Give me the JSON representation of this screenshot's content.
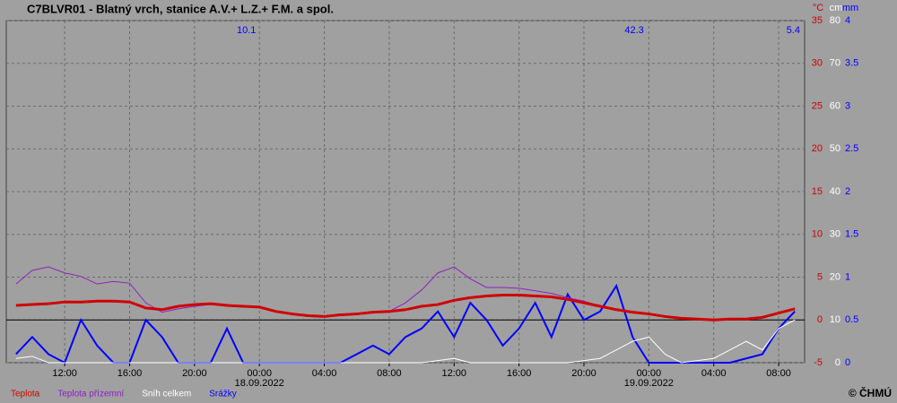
{
  "chart_data": {
    "type": "line",
    "title": "C7BLVR01 - Blatný vrch, stanice A.V.+ L.Z.+ F.M. a spol.",
    "y_unit": "°C",
    "y2_unit": "cm",
    "y3_unit": "mm",
    "copyright": "© ČHMÚ",
    "x": [
      9,
      10,
      11,
      12,
      13,
      14,
      15,
      16,
      17,
      18,
      19,
      20,
      21,
      22,
      23,
      24,
      25,
      26,
      27,
      28,
      29,
      30,
      31,
      32,
      33,
      34,
      35,
      36,
      37,
      38,
      39,
      40,
      41,
      42,
      43,
      44,
      45,
      46,
      47,
      48,
      49,
      50,
      51,
      52,
      53,
      54,
      55,
      56,
      57
    ],
    "xlim": [
      8.4,
      57.6
    ],
    "xticks": [
      {
        "value": 12,
        "label": "12:00"
      },
      {
        "value": 16,
        "label": "16:00"
      },
      {
        "value": 20,
        "label": "20:00"
      },
      {
        "value": 24,
        "label": "00:00"
      },
      {
        "value": 28,
        "label": "04:00"
      },
      {
        "value": 32,
        "label": "08:00"
      },
      {
        "value": 36,
        "label": "12:00"
      },
      {
        "value": 40,
        "label": "16:00"
      },
      {
        "value": 44,
        "label": "20:00"
      },
      {
        "value": 48,
        "label": "00:00"
      },
      {
        "value": 52,
        "label": "04:00"
      },
      {
        "value": 56,
        "label": "08:00"
      }
    ],
    "date_labels": [
      {
        "value": 24,
        "label": "18.09.2022"
      },
      {
        "value": 48,
        "label": "19.09.2022"
      }
    ],
    "top_labels": [
      {
        "x": 23.2,
        "label": "10.1"
      },
      {
        "x": 47.1,
        "label": "42.3"
      },
      {
        "x": 56.9,
        "label": "5.4"
      }
    ],
    "ylim": [
      -5,
      35
    ],
    "yticks": [
      -5,
      0,
      5,
      10,
      15,
      20,
      25,
      30,
      35
    ],
    "y2lim": [
      0,
      80
    ],
    "y2ticks": [
      0,
      10,
      20,
      30,
      40,
      50,
      60,
      70,
      80
    ],
    "y3lim": [
      0,
      4
    ],
    "y3ticks": [
      0,
      0.5,
      1,
      1.5,
      2,
      2.5,
      3,
      3.5,
      4
    ],
    "grid": true,
    "zero_line": true,
    "series": [
      {
        "name": "Teplota",
        "color": "#d00000",
        "axis": "y",
        "values": [
          1.7,
          1.8,
          1.9,
          2.1,
          2.1,
          2.2,
          2.2,
          2.1,
          1.4,
          1.2,
          1.6,
          1.8,
          1.9,
          1.7,
          1.6,
          1.5,
          1.0,
          0.7,
          0.5,
          0.4,
          0.6,
          0.7,
          0.9,
          1.0,
          1.2,
          1.6,
          1.8,
          2.3,
          2.6,
          2.8,
          2.9,
          2.9,
          2.8,
          2.7,
          2.4,
          2.0,
          1.6,
          1.2,
          0.9,
          0.7,
          0.4,
          0.2,
          0.1,
          0.0,
          0.1,
          0.1,
          0.3,
          0.8,
          1.3
        ]
      },
      {
        "name": "Teplota přízemní",
        "color": "#9020c0",
        "axis": "y",
        "values": [
          4.2,
          5.8,
          6.2,
          5.5,
          5.1,
          4.2,
          4.5,
          4.3,
          2.0,
          0.9,
          1.3,
          1.6,
          1.8,
          1.6,
          1.5,
          1.5,
          1.1,
          0.8,
          0.5,
          0.4,
          0.6,
          0.8,
          0.9,
          1.0,
          2.0,
          3.5,
          5.5,
          6.2,
          4.8,
          3.8,
          3.8,
          3.7,
          3.4,
          3.1,
          2.6,
          2.2,
          1.6,
          1.2,
          0.9,
          0.7,
          0.4,
          0.2,
          0.1,
          0.0,
          0.1,
          0.1,
          0.3,
          0.8,
          1.3
        ]
      },
      {
        "name": "Sníh celkem",
        "color": "#ffffff",
        "axis": "y2",
        "values": [
          1,
          1.5,
          0,
          0,
          0,
          0,
          0,
          0,
          0,
          0,
          0,
          0,
          0,
          0,
          0,
          0,
          0,
          0,
          0,
          0,
          0,
          0,
          0,
          0,
          0,
          0,
          0.5,
          1,
          0,
          0,
          0,
          0,
          0,
          0,
          0,
          0.5,
          1,
          3,
          5,
          6,
          2,
          0,
          0.5,
          1,
          3,
          5,
          3,
          8,
          10
        ]
      },
      {
        "name": "Srážky",
        "color": "#0000ff",
        "axis": "y3",
        "values": [
          0.1,
          0.3,
          0.1,
          0,
          0.5,
          0.2,
          0,
          0,
          0.5,
          0.3,
          0,
          0,
          0,
          0.4,
          0,
          0,
          0,
          0,
          0,
          0,
          0,
          0.1,
          0.2,
          0.1,
          0.3,
          0.4,
          0.6,
          0.3,
          0.7,
          0.5,
          0.2,
          0.4,
          0.7,
          0.3,
          0.8,
          0.5,
          0.6,
          0.9,
          0.3,
          0,
          0,
          0,
          0,
          0,
          0,
          0.05,
          0.1,
          0.4,
          0.6
        ]
      }
    ]
  }
}
